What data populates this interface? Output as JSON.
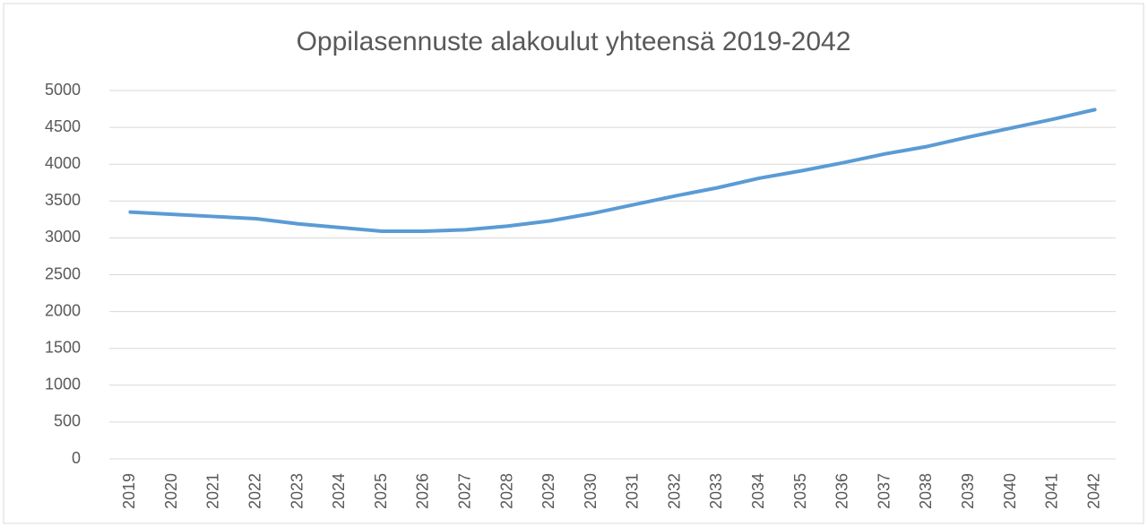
{
  "chart_data": {
    "type": "line",
    "title": "Oppilasennuste alakoulut yhteensä 2019-2042",
    "categories": [
      "2019",
      "2020",
      "2021",
      "2022",
      "2023",
      "2024",
      "2025",
      "2026",
      "2027",
      "2028",
      "2029",
      "2030",
      "2031",
      "2032",
      "2033",
      "2034",
      "2035",
      "2036",
      "2037",
      "2038",
      "2039",
      "2040",
      "2041",
      "2042"
    ],
    "values": [
      3350,
      3320,
      3290,
      3260,
      3190,
      3140,
      3090,
      3090,
      3110,
      3160,
      3230,
      3330,
      3450,
      3570,
      3680,
      3810,
      3910,
      4020,
      4140,
      4240,
      4370,
      4490,
      4610,
      4740
    ],
    "color": "#5b9bd5",
    "ylim": [
      0,
      5000
    ],
    "yticks": [
      0,
      500,
      1000,
      1500,
      2000,
      2500,
      3000,
      3500,
      4000,
      4500,
      5000
    ],
    "grid": true
  }
}
